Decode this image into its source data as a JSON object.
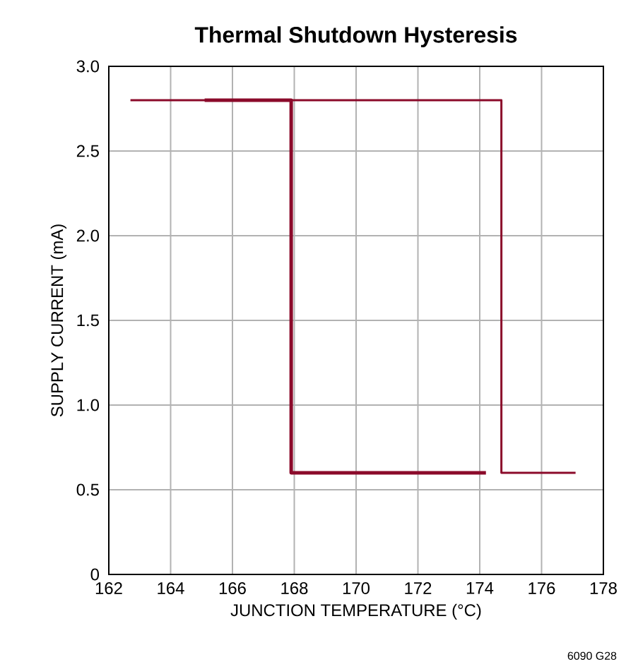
{
  "chart_data": {
    "type": "line",
    "title": "Thermal Shutdown Hysteresis",
    "xlabel": "JUNCTION TEMPERATURE (°C)",
    "ylabel": "SUPPLY CURRENT (mA)",
    "annotations": [
      "6090 G28"
    ],
    "series": [
      {
        "x": [
          162.7,
          174.7,
          174.7,
          177.1
        ],
        "values": [
          2.8,
          2.8,
          0.6,
          0.6
        ],
        "color": "#8b0a2a"
      },
      {
        "x": [
          174.2,
          167.9,
          167.9,
          165.1
        ],
        "values": [
          0.6,
          0.6,
          2.8,
          2.8
        ],
        "color": "#8b0a2a"
      }
    ],
    "xlim": [
      162,
      178
    ],
    "xticks": [
      162,
      164,
      166,
      168,
      170,
      172,
      174,
      176,
      178
    ],
    "ylim": [
      0,
      3
    ],
    "yticks": [
      0,
      0.5,
      {
        "value": 1,
        "label": "1.0"
      },
      1.5,
      {
        "value": 2,
        "label": "2.0"
      },
      2.5,
      {
        "value": 3,
        "label": "3.0"
      }
    ],
    "grid": true,
    "marker": "none",
    "line_style": "solid"
  }
}
